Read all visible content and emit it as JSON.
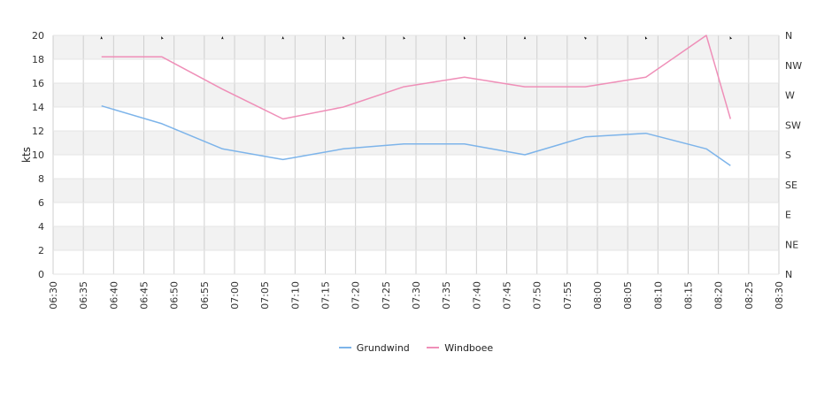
{
  "chart_data": {
    "type": "line",
    "ylabel": "kts",
    "ylim": [
      0,
      20
    ],
    "yticks": [
      "0",
      "2",
      "4",
      "6",
      "8",
      "10",
      "12",
      "14",
      "16",
      "18",
      "20"
    ],
    "xlim": [
      "06:30",
      "08:30"
    ],
    "xticks": [
      "06:30",
      "06:35",
      "06:40",
      "06:45",
      "06:50",
      "06:55",
      "07:00",
      "07:05",
      "07:10",
      "07:15",
      "07:20",
      "07:25",
      "07:30",
      "07:35",
      "07:40",
      "07:45",
      "07:50",
      "07:55",
      "08:00",
      "08:05",
      "08:10",
      "08:15",
      "08:20",
      "08:25",
      "08:30"
    ],
    "direction_labels": [
      "N",
      "NW",
      "W",
      "SW",
      "S",
      "SE",
      "E",
      "NE",
      "N"
    ],
    "grid": true,
    "legend_position": "bottom",
    "series": [
      {
        "name": "Grundwind",
        "color": "#7db4ea",
        "points": [
          [
            "06:38",
            14.1
          ],
          [
            "06:48",
            12.6
          ],
          [
            "06:58",
            10.5
          ],
          [
            "07:08",
            9.6
          ],
          [
            "07:18",
            10.5
          ],
          [
            "07:28",
            10.9
          ],
          [
            "07:38",
            10.9
          ],
          [
            "07:48",
            10.0
          ],
          [
            "07:58",
            11.5
          ],
          [
            "08:08",
            11.8
          ],
          [
            "08:18",
            10.5
          ],
          [
            "08:22",
            9.1
          ]
        ]
      },
      {
        "name": "Windboee",
        "color": "#ef8fb8",
        "points": [
          [
            "06:38",
            18.2
          ],
          [
            "06:48",
            18.2
          ],
          [
            "06:58",
            15.5
          ],
          [
            "07:08",
            13.0
          ],
          [
            "07:18",
            14.0
          ],
          [
            "07:28",
            15.7
          ],
          [
            "07:38",
            16.5
          ],
          [
            "07:48",
            15.7
          ],
          [
            "07:58",
            15.7
          ],
          [
            "08:08",
            16.5
          ],
          [
            "08:18",
            20.0
          ],
          [
            "08:22",
            13.0
          ]
        ]
      }
    ],
    "direction_markers": [
      [
        "06:38",
        0.0
      ],
      [
        "06:48",
        337.5
      ],
      [
        "06:58",
        0.0
      ],
      [
        "07:08",
        0.0
      ],
      [
        "07:18",
        337.5
      ],
      [
        "07:28",
        337.5
      ],
      [
        "07:38",
        337.5
      ],
      [
        "07:48",
        0.0
      ],
      [
        "07:58",
        315.0
      ],
      [
        "08:08",
        337.5
      ],
      [
        "08:22",
        337.5
      ]
    ]
  }
}
